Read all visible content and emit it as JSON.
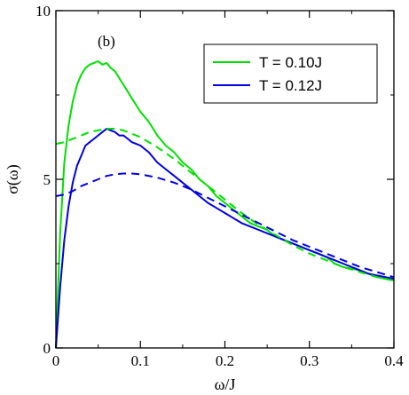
{
  "chart_data": {
    "type": "line",
    "panel_label": "(b)",
    "xlabel": "ω/J",
    "ylabel": "σ(ω)",
    "xlim": [
      0,
      0.4
    ],
    "ylim": [
      0,
      10
    ],
    "xticks": [
      0,
      0.1,
      0.2,
      0.3,
      0.4
    ],
    "xtick_labels": [
      "0",
      "0.1",
      "0.2",
      "0.3",
      "0.4"
    ],
    "yticks": [
      0,
      5,
      10
    ],
    "ytick_labels": [
      "0",
      "5",
      "10"
    ],
    "grid": false,
    "legend_position": "top-right",
    "series": [
      {
        "name": "T = 0.10J",
        "color": "#00e000",
        "style": "solid",
        "x": [
          0,
          0.005,
          0.01,
          0.015,
          0.02,
          0.025,
          0.03,
          0.035,
          0.04,
          0.045,
          0.05,
          0.055,
          0.06,
          0.065,
          0.07,
          0.075,
          0.08,
          0.085,
          0.09,
          0.095,
          0.1,
          0.11,
          0.12,
          0.13,
          0.14,
          0.15,
          0.16,
          0.17,
          0.18,
          0.19,
          0.2,
          0.21,
          0.22,
          0.23,
          0.24,
          0.25,
          0.26,
          0.27,
          0.28,
          0.29,
          0.3,
          0.31,
          0.32,
          0.33,
          0.34,
          0.35,
          0.36,
          0.37,
          0.38,
          0.39,
          0.4
        ],
        "y": [
          0,
          3.4,
          5.5,
          6.6,
          7.3,
          7.8,
          8.1,
          8.3,
          8.4,
          8.45,
          8.5,
          8.4,
          8.45,
          8.3,
          8.2,
          8.0,
          7.8,
          7.6,
          7.4,
          7.2,
          7.0,
          6.7,
          6.3,
          6.0,
          5.8,
          5.5,
          5.3,
          5.0,
          4.8,
          4.5,
          4.3,
          4.1,
          3.9,
          3.7,
          3.6,
          3.5,
          3.3,
          3.2,
          3.1,
          3.0,
          2.9,
          2.8,
          2.7,
          2.5,
          2.4,
          2.35,
          2.3,
          2.2,
          2.1,
          2.05,
          2.0
        ]
      },
      {
        "name": "T = 0.12J",
        "color": "#0000e0",
        "style": "solid",
        "x": [
          0,
          0.005,
          0.01,
          0.015,
          0.02,
          0.025,
          0.03,
          0.035,
          0.04,
          0.045,
          0.05,
          0.055,
          0.06,
          0.065,
          0.07,
          0.075,
          0.08,
          0.085,
          0.09,
          0.095,
          0.1,
          0.11,
          0.12,
          0.13,
          0.14,
          0.15,
          0.16,
          0.17,
          0.18,
          0.19,
          0.2,
          0.21,
          0.22,
          0.23,
          0.24,
          0.25,
          0.26,
          0.27,
          0.28,
          0.29,
          0.3,
          0.31,
          0.32,
          0.33,
          0.34,
          0.35,
          0.36,
          0.37,
          0.38,
          0.39,
          0.4
        ],
        "y": [
          0,
          1.8,
          3.2,
          4.2,
          4.9,
          5.4,
          5.7,
          6.0,
          6.1,
          6.2,
          6.3,
          6.4,
          6.5,
          6.45,
          6.4,
          6.3,
          6.3,
          6.2,
          6.1,
          6.05,
          6.0,
          5.8,
          5.5,
          5.3,
          5.1,
          4.9,
          4.7,
          4.5,
          4.3,
          4.15,
          4.0,
          3.85,
          3.7,
          3.6,
          3.5,
          3.4,
          3.3,
          3.2,
          3.1,
          3.0,
          2.9,
          2.8,
          2.7,
          2.6,
          2.5,
          2.4,
          2.3,
          2.2,
          2.15,
          2.1,
          2.05
        ]
      },
      {
        "name": "",
        "color": "#00e000",
        "style": "dashed",
        "x": [
          0,
          0.01,
          0.02,
          0.03,
          0.04,
          0.05,
          0.06,
          0.07,
          0.08,
          0.09,
          0.1,
          0.12,
          0.14,
          0.16,
          0.18,
          0.2,
          0.22,
          0.24,
          0.26,
          0.28,
          0.3,
          0.32,
          0.34,
          0.36,
          0.38,
          0.4
        ],
        "y": [
          6.05,
          6.1,
          6.2,
          6.3,
          6.4,
          6.45,
          6.5,
          6.5,
          6.45,
          6.35,
          6.25,
          5.95,
          5.6,
          5.2,
          4.8,
          4.4,
          4.0,
          3.65,
          3.35,
          3.05,
          2.8,
          2.6,
          2.4,
          2.25,
          2.1,
          2.0
        ]
      },
      {
        "name": "",
        "color": "#0000e0",
        "style": "dashed",
        "x": [
          0,
          0.01,
          0.02,
          0.03,
          0.04,
          0.05,
          0.06,
          0.07,
          0.08,
          0.09,
          0.1,
          0.12,
          0.14,
          0.16,
          0.18,
          0.2,
          0.22,
          0.24,
          0.26,
          0.28,
          0.3,
          0.32,
          0.34,
          0.36,
          0.38,
          0.4
        ],
        "y": [
          4.5,
          4.55,
          4.65,
          4.8,
          4.9,
          5.0,
          5.1,
          5.15,
          5.17,
          5.17,
          5.15,
          5.05,
          4.9,
          4.7,
          4.45,
          4.2,
          3.95,
          3.7,
          3.45,
          3.2,
          3.0,
          2.8,
          2.6,
          2.4,
          2.25,
          2.1
        ]
      }
    ]
  }
}
